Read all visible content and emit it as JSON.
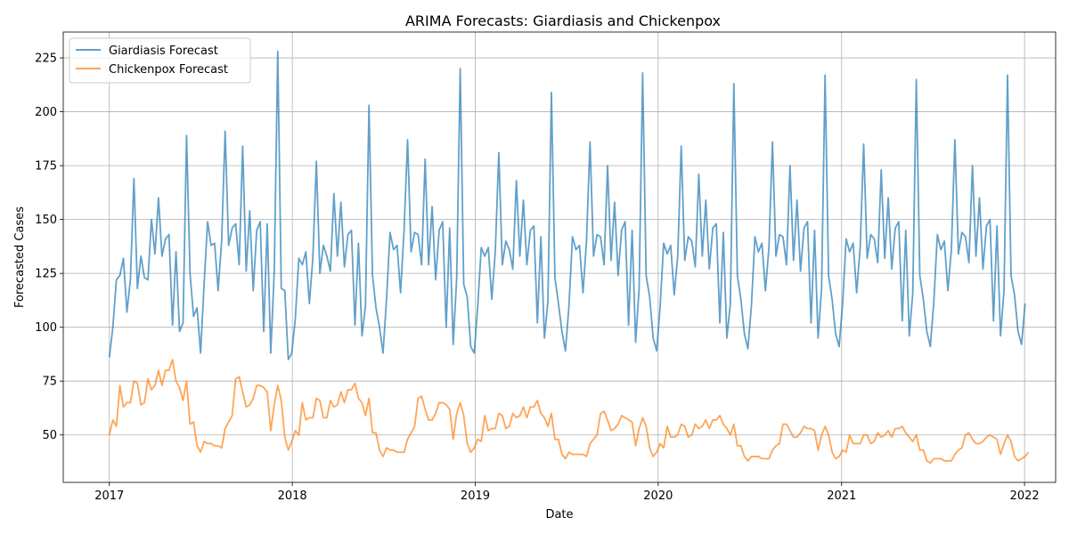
{
  "chart_data": {
    "type": "line",
    "title": "ARIMA Forecasts: Giardiasis and Chickenpox",
    "xlabel": "Date",
    "ylabel": "Forecasted Cases",
    "x_ticks": [
      "2017",
      "2018",
      "2019",
      "2020",
      "2021",
      "2022"
    ],
    "y_ticks": [
      50,
      75,
      100,
      125,
      150,
      175,
      200,
      225
    ],
    "xlim": [
      "2016-10-01",
      "2022-03-04"
    ],
    "ylim": [
      28,
      237
    ],
    "grid": true,
    "legend_position": "top-left",
    "frequency": "weekly",
    "x_start": "2017-01-01",
    "series": [
      {
        "name": "Giardiasis Forecast",
        "color": "#1f77b4",
        "values": [
          86,
          100,
          122,
          124,
          132,
          107,
          122,
          169,
          118,
          133,
          123,
          122,
          150,
          134,
          160,
          133,
          141,
          143,
          101,
          135,
          98,
          102,
          189,
          125,
          105,
          109,
          88,
          120,
          149,
          138,
          139,
          117,
          140,
          191,
          138,
          146,
          148,
          129,
          184,
          126,
          154,
          117,
          145,
          149,
          98,
          148,
          88,
          126,
          228,
          118,
          117,
          85,
          88,
          104,
          132,
          129,
          135,
          111,
          132,
          177,
          125,
          138,
          133,
          126,
          162,
          133,
          158,
          128,
          143,
          145,
          101,
          139,
          96,
          110,
          203,
          124,
          109,
          100,
          88,
          113,
          144,
          136,
          138,
          116,
          145,
          187,
          135,
          144,
          143,
          129,
          178,
          129,
          156,
          122,
          145,
          149,
          100,
          146,
          92,
          123,
          220,
          120,
          114,
          91,
          88,
          110,
          137,
          133,
          137,
          113,
          135,
          181,
          129,
          140,
          136,
          127,
          168,
          133,
          159,
          129,
          145,
          147,
          102,
          142,
          95,
          112,
          209,
          123,
          111,
          98,
          89,
          110,
          142,
          136,
          138,
          116,
          140,
          186,
          133,
          143,
          142,
          129,
          175,
          131,
          158,
          124,
          145,
          149,
          101,
          145,
          93,
          118,
          218,
          124,
          114,
          95,
          89,
          110,
          139,
          134,
          138,
          115,
          133,
          184,
          131,
          142,
          140,
          128,
          171,
          133,
          159,
          127,
          146,
          148,
          102,
          144,
          95,
          111,
          213,
          124,
          113,
          97,
          90,
          110,
          142,
          135,
          139,
          117,
          137,
          186,
          133,
          143,
          142,
          129,
          175,
          131,
          159,
          126,
          146,
          149,
          102,
          145,
          95,
          118,
          217,
          124,
          113,
          97,
          91,
          111,
          141,
          135,
          139,
          116,
          137,
          185,
          132,
          143,
          141,
          130,
          173,
          132,
          160,
          127,
          146,
          149,
          103,
          145,
          96,
          116,
          215,
          124,
          113,
          98,
          91,
          112,
          143,
          136,
          140,
          117,
          136,
          187,
          134,
          144,
          142,
          130,
          175,
          133,
          160,
          127,
          147,
          150,
          103,
          147,
          96,
          117,
          217,
          124,
          115,
          98,
          92,
          111
        ]
      },
      {
        "name": "Chickenpox Forecast",
        "color": "#ff7f0e",
        "values": [
          50,
          57,
          54,
          73,
          63,
          65,
          65,
          75,
          74,
          64,
          65,
          76,
          71,
          73,
          80,
          73,
          80,
          80,
          85,
          75,
          72,
          66,
          75,
          55,
          56,
          45,
          42,
          47,
          46,
          46,
          45,
          45,
          44,
          53,
          56,
          59,
          76,
          77,
          70,
          63,
          64,
          67,
          73,
          73,
          72,
          70,
          52,
          64,
          73,
          66,
          49,
          43,
          47,
          52,
          50,
          65,
          57,
          58,
          58,
          67,
          66,
          58,
          58,
          66,
          63,
          64,
          70,
          65,
          71,
          71,
          74,
          67,
          65,
          59,
          67,
          51,
          51,
          43,
          40,
          44,
          43,
          43,
          42,
          42,
          42,
          48,
          51,
          54,
          67,
          68,
          62,
          57,
          57,
          60,
          65,
          65,
          64,
          62,
          48,
          60,
          65,
          59,
          46,
          42,
          44,
          48,
          47,
          59,
          52,
          53,
          53,
          60,
          59,
          53,
          54,
          60,
          58,
          59,
          63,
          58,
          63,
          63,
          66,
          60,
          58,
          54,
          60,
          48,
          48,
          41,
          39,
          42,
          41,
          41,
          41,
          41,
          40,
          46,
          48,
          50,
          60,
          61,
          57,
          52,
          53,
          55,
          59,
          58,
          57,
          56,
          45,
          53,
          58,
          54,
          44,
          40,
          42,
          46,
          44,
          54,
          49,
          49,
          50,
          55,
          54,
          49,
          50,
          55,
          53,
          54,
          57,
          53,
          57,
          57,
          59,
          55,
          53,
          50,
          55,
          45,
          45,
          40,
          38,
          40,
          40,
          40,
          39,
          39,
          39,
          43,
          45,
          46,
          55,
          55,
          52,
          49,
          49,
          51,
          54,
          53,
          53,
          52,
          43,
          50,
          54,
          50,
          42,
          39,
          40,
          43,
          42,
          50,
          46,
          46,
          46,
          50,
          50,
          46,
          47,
          51,
          49,
          50,
          52,
          49,
          53,
          53,
          54,
          51,
          49,
          47,
          50,
          43,
          43,
          38,
          37,
          39,
          39,
          39,
          38,
          38,
          38,
          41,
          43,
          44,
          50,
          51,
          48,
          46,
          46,
          47,
          49,
          50,
          49,
          48,
          41,
          46,
          50,
          47,
          40,
          38,
          39,
          40,
          42
        ]
      }
    ]
  }
}
